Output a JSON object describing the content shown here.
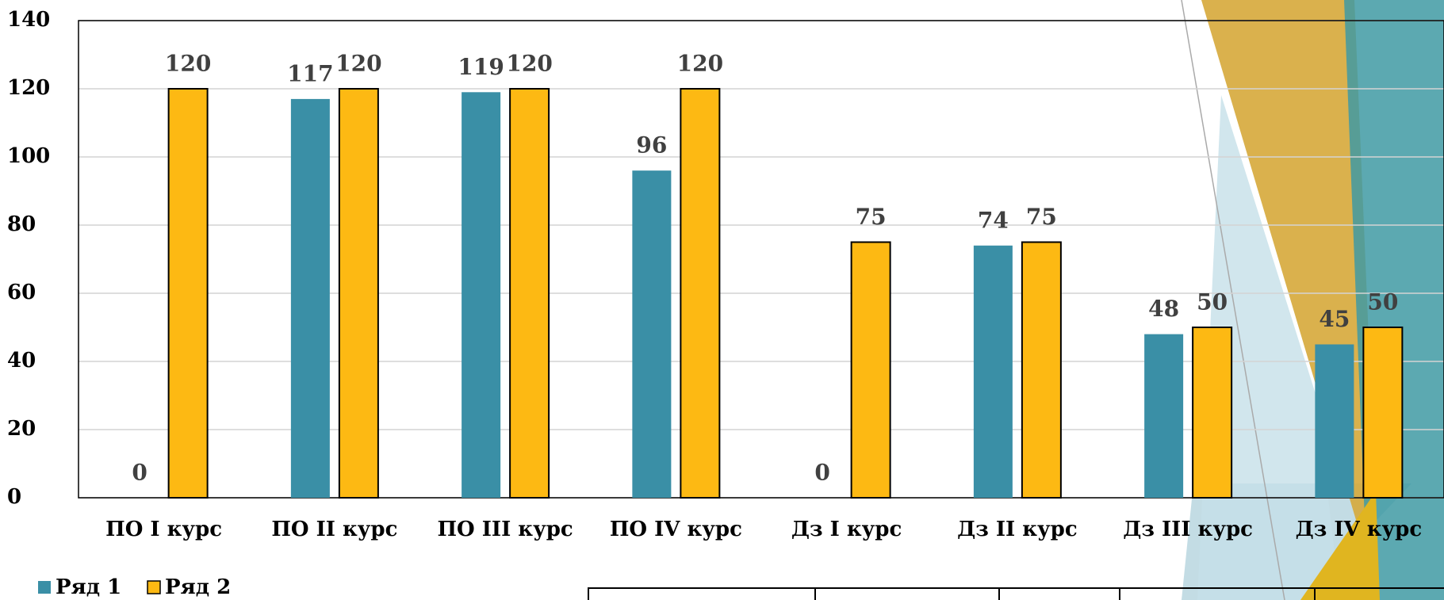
{
  "chart_data": {
    "type": "bar",
    "categories": [
      "ПО  I курс",
      "ПО II курс",
      "ПО III курс",
      "ПО IV курс",
      "Дз I курс",
      "Дз II курс",
      "Дз III курс",
      "Дз IV курс"
    ],
    "series": [
      {
        "name": "Ряд 1",
        "color": "#3a8fa6",
        "values": [
          0,
          117,
          119,
          96,
          0,
          74,
          48,
          45
        ]
      },
      {
        "name": "Ряд 2",
        "color": "#fdb913",
        "values": [
          120,
          120,
          120,
          120,
          75,
          75,
          50,
          50
        ]
      }
    ],
    "ylim": [
      0,
      140
    ],
    "yticks": [
      0,
      20,
      40,
      60,
      80,
      100,
      120,
      140
    ],
    "grid": true,
    "legend": "bottom-left"
  }
}
